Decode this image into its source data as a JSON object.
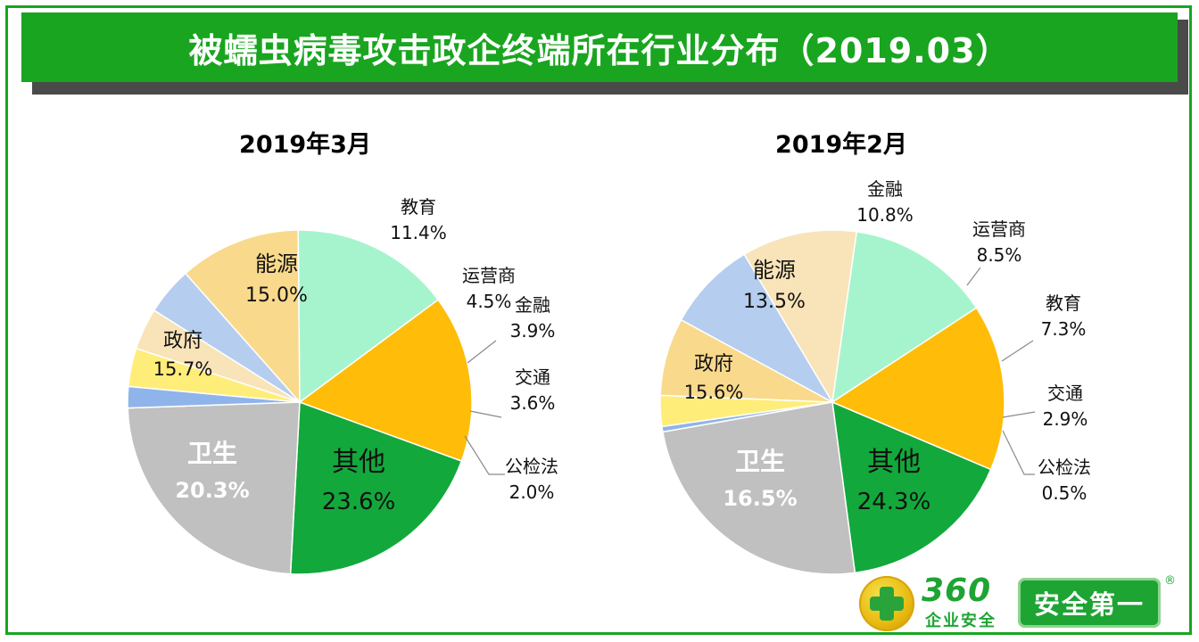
{
  "banner": {
    "title": "被蠕虫病毒攻击政企终端所在行业分布（2019.03）"
  },
  "logo": {
    "brand_number": "360",
    "brand_sub": "企业安全",
    "slogan": "安全第一",
    "reg_mark": "®"
  },
  "colors": {
    "卫生": "#13a83c",
    "其他": "#c0c0c0",
    "公检法": "#8fb4ea",
    "交通": "#ffed7a",
    "金融": "#f9e3b8",
    "运营商": "#b5cdee",
    "教育": "#f9d98b",
    "能源": "#a6f4cd",
    "政府": "#ffbd09"
  },
  "chart_data": [
    {
      "type": "pie",
      "title": "2019年3月",
      "slices": [
        {
          "label": "卫生",
          "value": 20.3,
          "display": "20.3%"
        },
        {
          "label": "其他",
          "value": 23.6,
          "display": "23.6%"
        },
        {
          "label": "公检法",
          "value": 2.0,
          "display": "2.0%"
        },
        {
          "label": "交通",
          "value": 3.6,
          "display": "3.6%"
        },
        {
          "label": "金融",
          "value": 3.9,
          "display": "3.9%"
        },
        {
          "label": "运营商",
          "value": 4.5,
          "display": "4.5%"
        },
        {
          "label": "教育",
          "value": 11.4,
          "display": "11.4%"
        },
        {
          "label": "能源",
          "value": 15.0,
          "display": "15.0%"
        },
        {
          "label": "政府",
          "value": 15.7,
          "display": "15.7%"
        }
      ]
    },
    {
      "type": "pie",
      "title": "2019年2月",
      "slices": [
        {
          "label": "卫生",
          "value": 16.5,
          "display": "16.5%"
        },
        {
          "label": "其他",
          "value": 24.3,
          "display": "24.3%"
        },
        {
          "label": "公检法",
          "value": 0.5,
          "display": "0.5%"
        },
        {
          "label": "交通",
          "value": 2.9,
          "display": "2.9%"
        },
        {
          "label": "教育",
          "value": 7.3,
          "display": "7.3%"
        },
        {
          "label": "运营商",
          "value": 8.5,
          "display": "8.5%"
        },
        {
          "label": "金融",
          "value": 10.8,
          "display": "10.8%"
        },
        {
          "label": "能源",
          "value": 13.5,
          "display": "13.5%"
        },
        {
          "label": "政府",
          "value": 15.6,
          "display": "15.6%"
        }
      ]
    }
  ]
}
